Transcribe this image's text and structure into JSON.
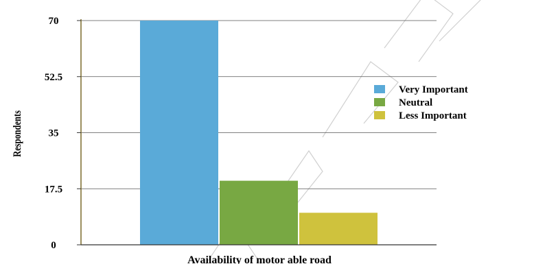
{
  "colors": {
    "very_important": "#5aaad8",
    "neutral": "#78a843",
    "less_important": "#cfc23d",
    "watermark": "#d0d0d0"
  },
  "chart_data": {
    "type": "bar",
    "xlabel": "Availability of motor able road",
    "ylabel": "Respondents",
    "ylim": [
      0,
      70
    ],
    "yticks": [
      "0",
      "17.5",
      "35",
      "52.5",
      "70"
    ],
    "grid": true,
    "legend_position": "right",
    "series": [
      {
        "name": "Very Important",
        "values": [
          70
        ],
        "color_key": "very_important"
      },
      {
        "name": "Neutral",
        "values": [
          20
        ],
        "color_key": "neutral"
      },
      {
        "name": "Less Important",
        "values": [
          10
        ],
        "color_key": "less_important"
      }
    ]
  }
}
